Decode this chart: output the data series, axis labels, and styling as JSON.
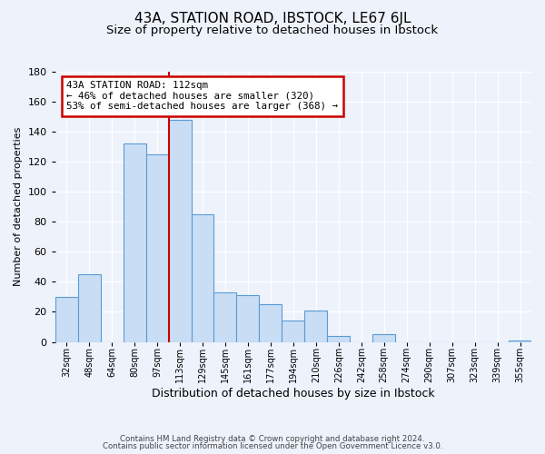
{
  "title": "43A, STATION ROAD, IBSTOCK, LE67 6JL",
  "subtitle": "Size of property relative to detached houses in Ibstock",
  "xlabel": "Distribution of detached houses by size in Ibstock",
  "ylabel": "Number of detached properties",
  "footer_line1": "Contains HM Land Registry data © Crown copyright and database right 2024.",
  "footer_line2": "Contains public sector information licensed under the Open Government Licence v3.0.",
  "bin_labels": [
    "32sqm",
    "48sqm",
    "64sqm",
    "80sqm",
    "97sqm",
    "113sqm",
    "129sqm",
    "145sqm",
    "161sqm",
    "177sqm",
    "194sqm",
    "210sqm",
    "226sqm",
    "242sqm",
    "258sqm",
    "274sqm",
    "290sqm",
    "307sqm",
    "323sqm",
    "339sqm",
    "355sqm"
  ],
  "bar_heights": [
    30,
    45,
    0,
    132,
    125,
    148,
    85,
    33,
    31,
    25,
    14,
    21,
    4,
    0,
    5,
    0,
    0,
    0,
    0,
    0,
    1
  ],
  "bar_color": "#c9ddf5",
  "bar_edge_color": "#5b9bd5",
  "annotation_box_text": "43A STATION ROAD: 112sqm\n← 46% of detached houses are smaller (320)\n53% of semi-detached houses are larger (368) →",
  "annotation_box_edge_color": "#cc0000",
  "annotation_box_facecolor": "#ffffff",
  "marker_line_color": "#cc0000",
  "ylim": [
    0,
    180
  ],
  "yticks": [
    0,
    20,
    40,
    60,
    80,
    100,
    120,
    140,
    160,
    180
  ],
  "background_color": "#edf2fb",
  "title_fontsize": 11,
  "subtitle_fontsize": 9.5,
  "xlabel_fontsize": 9,
  "ylabel_fontsize": 8
}
